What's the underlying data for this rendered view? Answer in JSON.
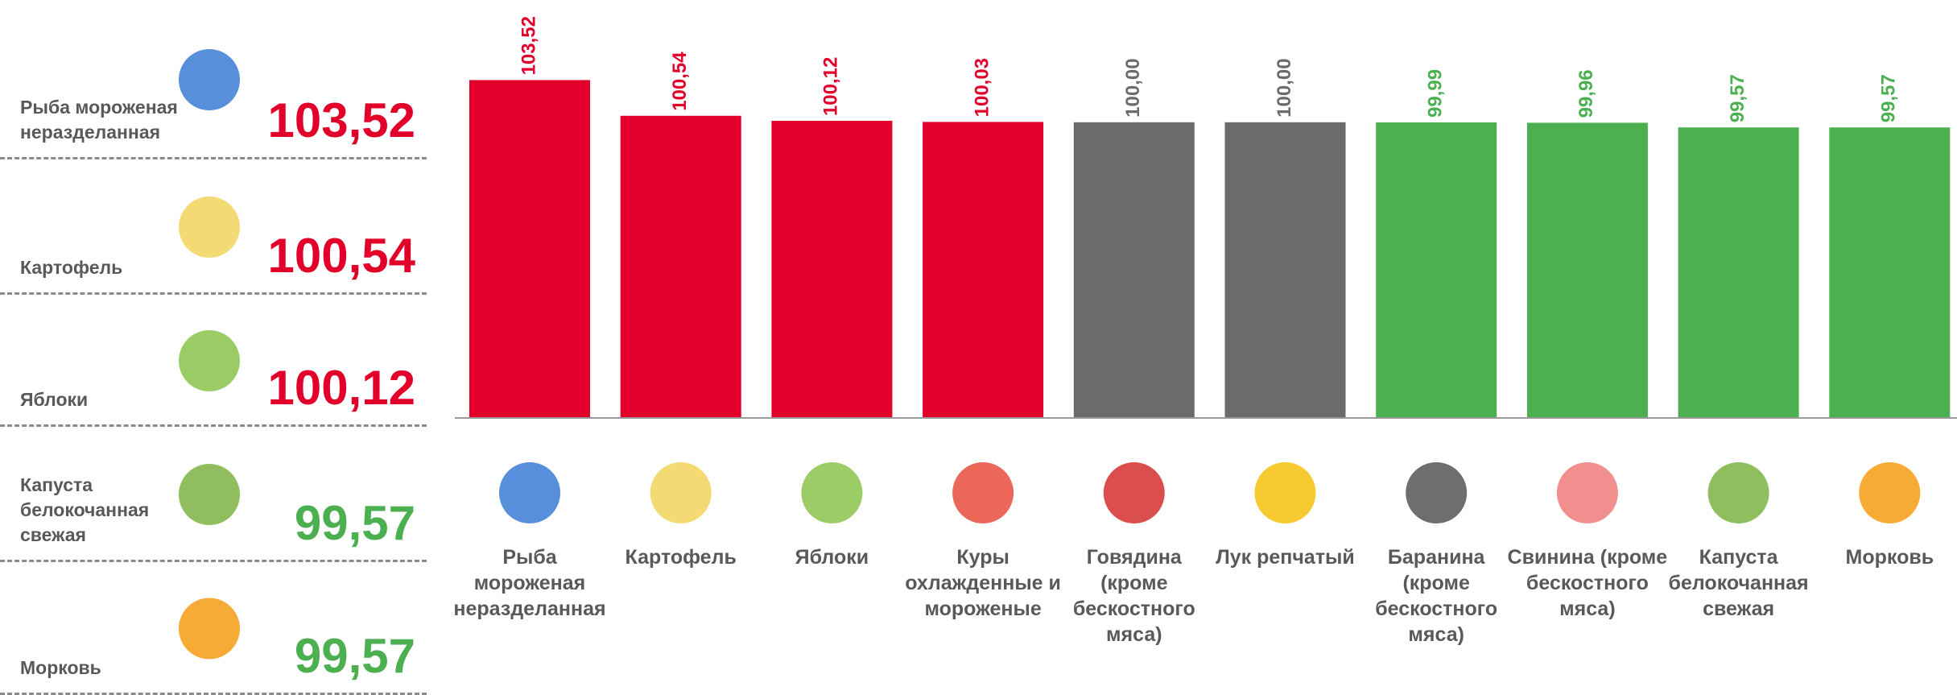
{
  "highlights": [
    {
      "name": "Рыба мороженая неразделанная",
      "value": "103,52",
      "color": "#e2002b"
    },
    {
      "name": "Картофель",
      "value": "100,54",
      "color": "#e2002b"
    },
    {
      "name": "Яблоки",
      "value": "100,12",
      "color": "#e2002b"
    },
    {
      "name": "Капуста белокочанная свежая",
      "value": "99,57",
      "color": "#4caf50"
    },
    {
      "name": "Морковь",
      "value": "99,57",
      "color": "#4caf50"
    }
  ],
  "chart_data": {
    "type": "bar",
    "categories": [
      "Рыба мороженая неразделанная",
      "Картофель",
      "Яблоки",
      "Куры охлажденные и мороженые",
      "Говядина (кроме бескостного мяса)",
      "Лук репчатый",
      "Баранина (кроме бескостного мяса)",
      "Свинина (кроме бескостного мяса)",
      "Капуста белокочанная свежая",
      "Морковь"
    ],
    "values": [
      103.52,
      100.54,
      100.12,
      100.03,
      100.0,
      100.0,
      99.99,
      99.96,
      99.57,
      99.57
    ],
    "value_labels": [
      "103,52",
      "100,54",
      "100,12",
      "100,03",
      "100,00",
      "100,00",
      "99,99",
      "99,96",
      "99,57",
      "99,57"
    ],
    "colors": [
      "#e2002b",
      "#e2002b",
      "#e2002b",
      "#e2002b",
      "#6b6b6b",
      "#6b6b6b",
      "#4caf50",
      "#4caf50",
      "#4caf50",
      "#4caf50"
    ],
    "ylim": [
      75.4,
      110.2
    ]
  }
}
